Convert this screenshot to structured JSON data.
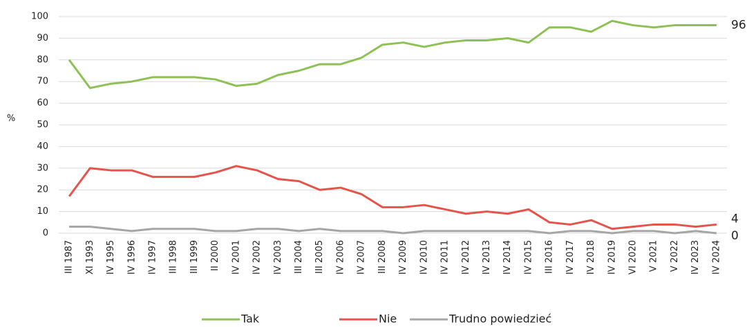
{
  "chart_data": {
    "type": "line",
    "y_label": "%",
    "categories": [
      "III 1987",
      "XI 1993",
      "IV 1995",
      "IV 1996",
      "IV 1997",
      "III 1998",
      "III 1999",
      "II 2000",
      "IV 2001",
      "IV 2002",
      "IV 2003",
      "III 2004",
      "III 2005",
      "IV 2006",
      "IV 2007",
      "III 2008",
      "IV 2009",
      "IV 2010",
      "IV 2011",
      "IV 2012",
      "IV 2013",
      "IV 2014",
      "IV 2015",
      "III 2016",
      "IV 2017",
      "IV 2018",
      "IV 2019",
      "VI 2020",
      "V 2021",
      "V 2022",
      "IV 2023",
      "IV 2024"
    ],
    "series": [
      {
        "name": "Tak",
        "color": "#8dc153",
        "values": [
          80,
          67,
          69,
          70,
          72,
          72,
          72,
          71,
          68,
          69,
          73,
          75,
          78,
          78,
          81,
          87,
          88,
          86,
          88,
          89,
          89,
          90,
          88,
          95,
          95,
          93,
          98,
          96,
          95,
          96,
          96,
          96
        ]
      },
      {
        "name": "Nie",
        "color": "#e5544a",
        "values": [
          17,
          30,
          29,
          29,
          26,
          26,
          26,
          28,
          31,
          29,
          25,
          24,
          20,
          21,
          18,
          12,
          12,
          13,
          11,
          9,
          10,
          9,
          11,
          5,
          4,
          6,
          2,
          3,
          4,
          4,
          3,
          4
        ]
      },
      {
        "name": "Trudno powiedzieć",
        "color": "#a6a6a6",
        "values": [
          3,
          3,
          2,
          1,
          2,
          2,
          2,
          1,
          1,
          2,
          2,
          1,
          2,
          1,
          1,
          1,
          0,
          1,
          1,
          1,
          1,
          1,
          1,
          0,
          1,
          1,
          0,
          1,
          1,
          0,
          1,
          0
        ]
      }
    ],
    "ylim": [
      0,
      100
    ],
    "yticks": [
      0,
      10,
      20,
      30,
      40,
      50,
      60,
      70,
      80,
      90,
      100
    ],
    "grid": true,
    "legend": "bottom",
    "label_last_point": true
  }
}
